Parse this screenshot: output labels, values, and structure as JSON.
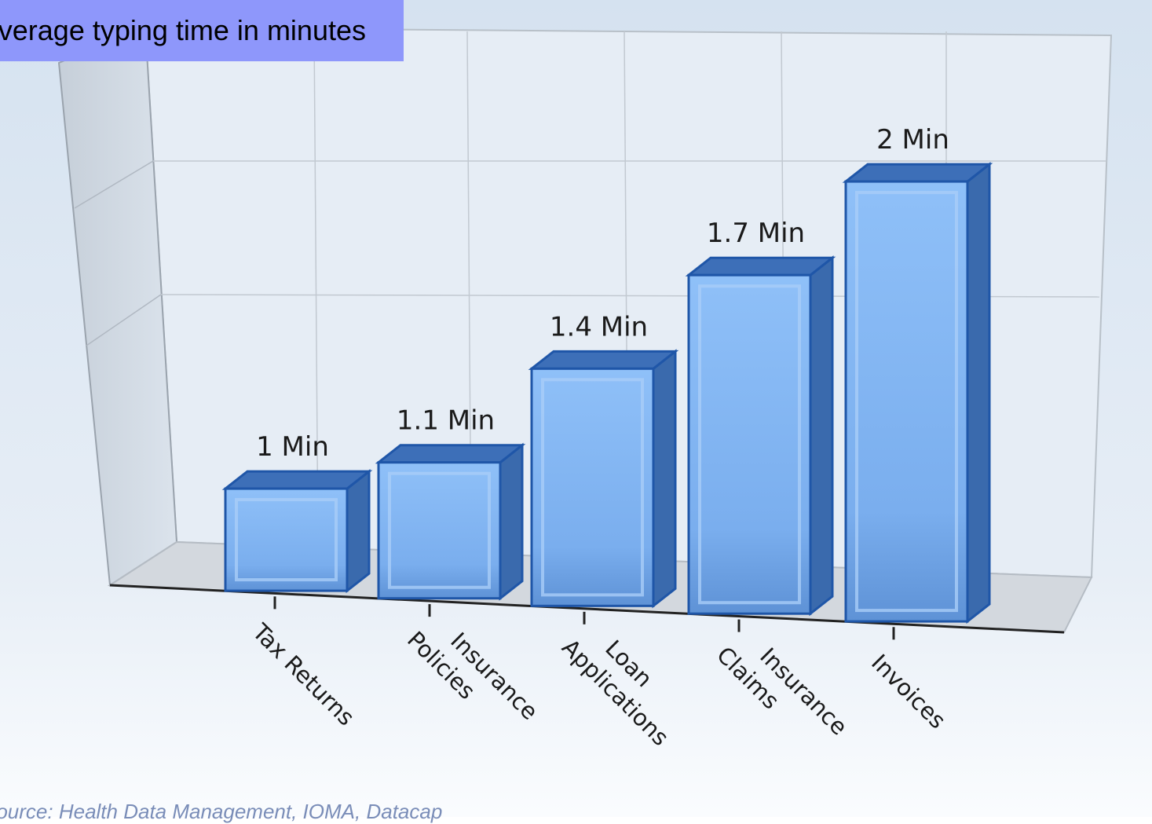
{
  "chart_title": "Average typing time in minutes",
  "source": "Source: Health Data Management, IOMA, Datacap",
  "colors": {
    "bar_front": "#7fb2f2",
    "bar_top": "#3d6fb8",
    "bar_side": "#3a6aad",
    "bar_edge": "#1f56a8",
    "title_bg": "#8e97fb"
  },
  "chart_data": {
    "type": "bar",
    "style": "3d",
    "title": "Average typing time in minutes",
    "categories": [
      "Tax Returns",
      "Insurance Policies",
      "Loan Applications",
      "Insurance Claims",
      "Invoices"
    ],
    "category_lines": [
      [
        "Tax Returns"
      ],
      [
        "Insurance",
        "Policies"
      ],
      [
        "Loan",
        "Applications"
      ],
      [
        "Insurance",
        "Claims"
      ],
      [
        "Invoices"
      ]
    ],
    "values": [
      1,
      1.1,
      1.4,
      1.7,
      2
    ],
    "value_labels": [
      "1 Min",
      "1.1 Min",
      "1.4 Min",
      "1.7 Min",
      "2 Min"
    ],
    "unit": "Min",
    "ylim": [
      0,
      2.4
    ],
    "grid": true,
    "legend": "none"
  }
}
